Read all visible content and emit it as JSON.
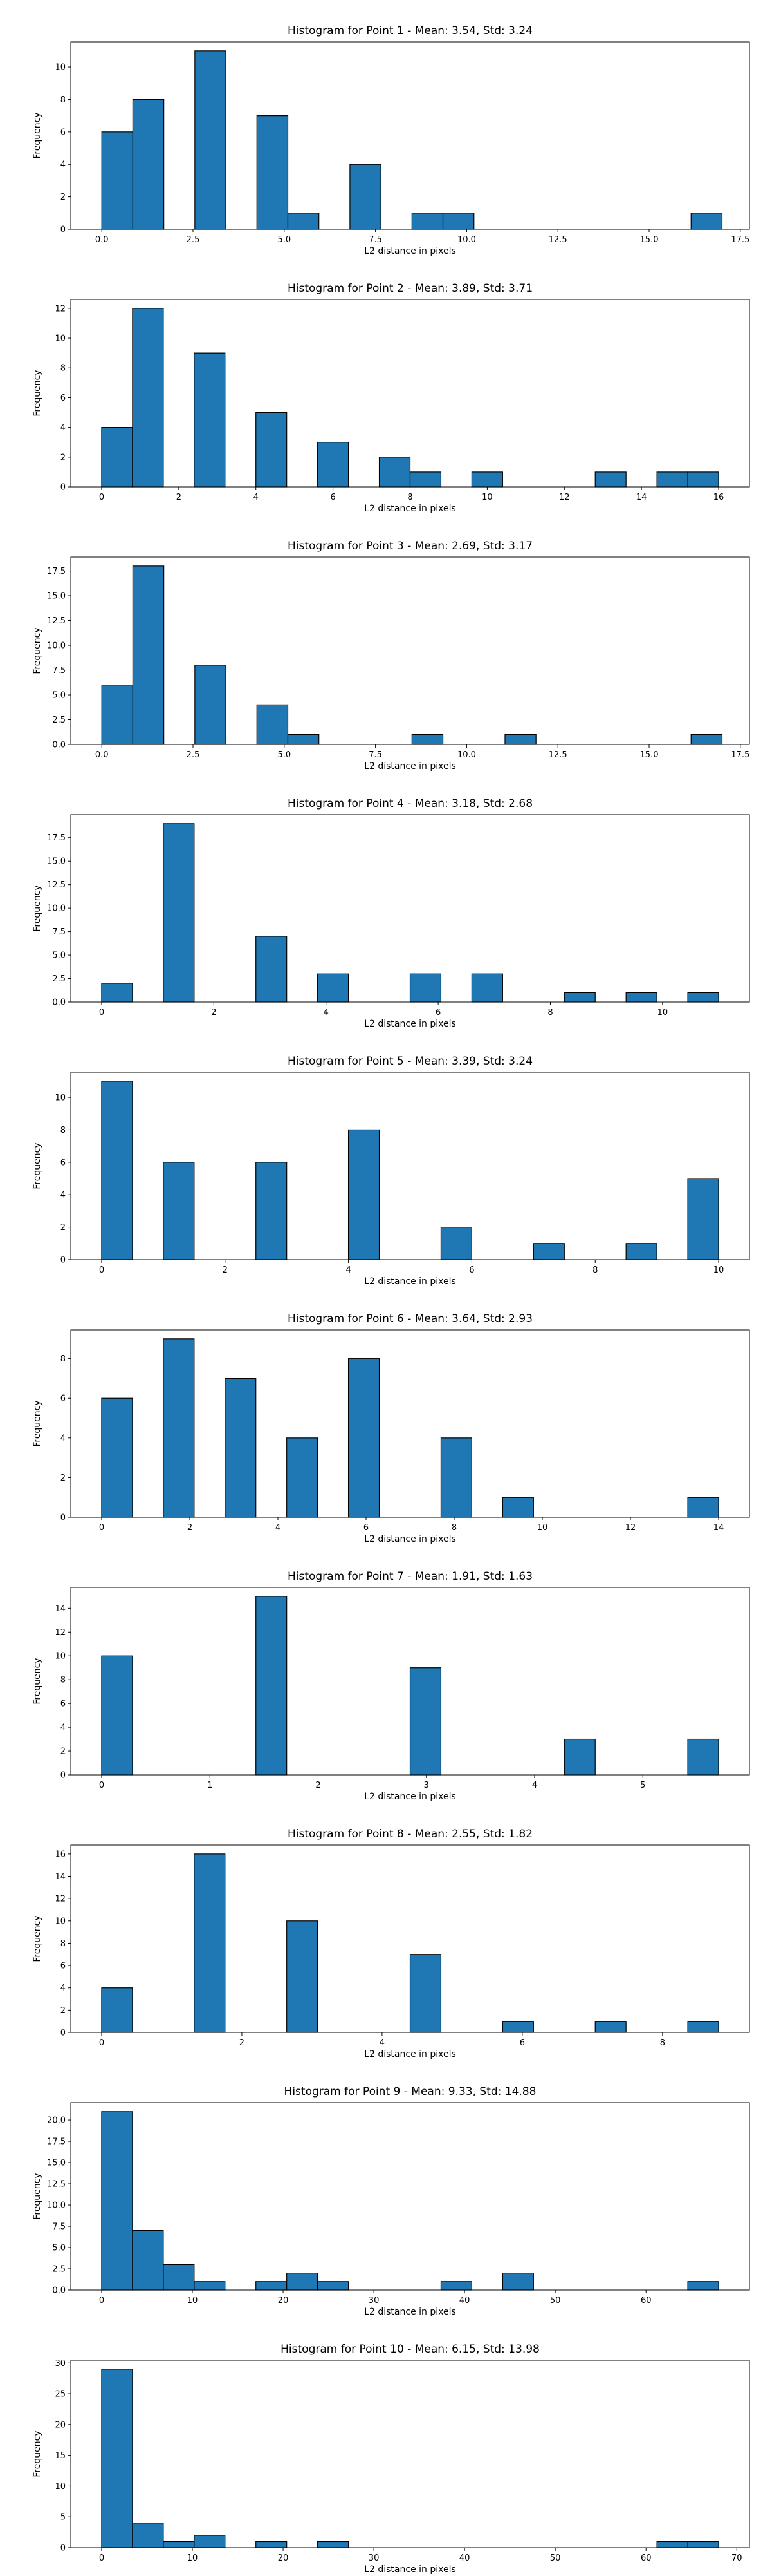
{
  "chart_data": [
    {
      "type": "bar",
      "title": "Histogram for Point 1 - Mean: 3.54, Std: 3.24",
      "xlabel": "L2 distance in pixels",
      "ylabel": "Frequency",
      "xlim": [
        -0.85,
        17.75
      ],
      "ylim": [
        0,
        11.55
      ],
      "xticks": [
        0.0,
        2.5,
        5.0,
        7.5,
        10.0,
        12.5,
        15.0,
        17.5
      ],
      "xtick_labels": [
        "0.0",
        "2.5",
        "5.0",
        "7.5",
        "10.0",
        "12.5",
        "15.0",
        "17.5"
      ],
      "yticks": [
        0,
        2,
        4,
        6,
        8,
        10
      ],
      "ytick_labels": [
        "0",
        "2",
        "4",
        "6",
        "8",
        "10"
      ],
      "bin_edges": [
        0.0,
        0.85,
        1.7,
        2.55,
        3.4,
        4.25,
        5.1,
        5.95,
        6.8,
        7.65,
        8.5,
        9.35,
        10.2,
        11.05,
        11.9,
        12.75,
        13.6,
        14.45,
        15.3,
        16.15,
        17.0
      ],
      "counts": [
        6,
        8,
        0,
        11,
        0,
        7,
        1,
        0,
        4,
        0,
        1,
        1,
        0,
        0,
        0,
        0,
        0,
        0,
        0,
        1
      ]
    },
    {
      "type": "bar",
      "title": "Histogram for Point 2 - Mean: 3.89, Std: 3.71",
      "xlabel": "L2 distance in pixels",
      "ylabel": "Frequency",
      "xlim": [
        -0.8,
        16.8
      ],
      "ylim": [
        0,
        12.6
      ],
      "xticks": [
        0,
        2,
        4,
        6,
        8,
        10,
        12,
        14,
        16
      ],
      "xtick_labels": [
        "0",
        "2",
        "4",
        "6",
        "8",
        "10",
        "12",
        "14",
        "16"
      ],
      "yticks": [
        0,
        2,
        4,
        6,
        8,
        10,
        12
      ],
      "ytick_labels": [
        "0",
        "2",
        "4",
        "6",
        "8",
        "10",
        "12"
      ],
      "bin_edges": [
        0.0,
        0.8,
        1.6,
        2.4,
        3.2,
        4.0,
        4.8,
        5.6,
        6.4,
        7.2,
        8.0,
        8.8,
        9.6,
        10.4,
        11.2,
        12.0,
        12.8,
        13.6,
        14.4,
        15.2,
        16.0
      ],
      "counts": [
        4,
        12,
        0,
        9,
        0,
        5,
        0,
        3,
        0,
        2,
        1,
        0,
        1,
        0,
        0,
        0,
        1,
        0,
        1,
        1
      ]
    },
    {
      "type": "bar",
      "title": "Histogram for Point 3 - Mean: 2.69, Std: 3.17",
      "xlabel": "L2 distance in pixels",
      "ylabel": "Frequency",
      "xlim": [
        -0.85,
        17.75
      ],
      "ylim": [
        0,
        18.9
      ],
      "xticks": [
        0.0,
        2.5,
        5.0,
        7.5,
        10.0,
        12.5,
        15.0,
        17.5
      ],
      "xtick_labels": [
        "0.0",
        "2.5",
        "5.0",
        "7.5",
        "10.0",
        "12.5",
        "15.0",
        "17.5"
      ],
      "yticks": [
        0,
        2.5,
        5,
        7.5,
        10,
        12.5,
        15,
        17.5
      ],
      "ytick_labels": [
        "0.0",
        "2.5",
        "5.0",
        "7.5",
        "10.0",
        "12.5",
        "15.0",
        "17.5"
      ],
      "bin_edges": [
        0.0,
        0.85,
        1.7,
        2.55,
        3.4,
        4.25,
        5.1,
        5.95,
        6.8,
        7.65,
        8.5,
        9.35,
        10.2,
        11.05,
        11.9,
        12.75,
        13.6,
        14.45,
        15.3,
        16.15,
        17.0
      ],
      "counts": [
        6,
        18,
        0,
        8,
        0,
        4,
        1,
        0,
        0,
        0,
        1,
        0,
        0,
        1,
        0,
        0,
        0,
        0,
        0,
        1
      ]
    },
    {
      "type": "bar",
      "title": "Histogram for Point 4 - Mean: 3.18, Std: 2.68",
      "xlabel": "L2 distance in pixels",
      "ylabel": "Frequency",
      "xlim": [
        -0.55,
        11.55
      ],
      "ylim": [
        0,
        19.95
      ],
      "xticks": [
        0,
        2,
        4,
        6,
        8,
        10
      ],
      "xtick_labels": [
        "0",
        "2",
        "4",
        "6",
        "8",
        "10"
      ],
      "yticks": [
        0,
        2.5,
        5,
        7.5,
        10,
        12.5,
        15,
        17.5
      ],
      "ytick_labels": [
        "0.0",
        "2.5",
        "5.0",
        "7.5",
        "10.0",
        "12.5",
        "15.0",
        "17.5"
      ],
      "bin_edges": [
        0.0,
        0.55,
        1.1,
        1.65,
        2.2,
        2.75,
        3.3,
        3.85,
        4.4,
        4.95,
        5.5,
        6.05,
        6.6,
        7.15,
        7.7,
        8.25,
        8.8,
        9.35,
        9.9,
        10.45,
        11.0
      ],
      "counts": [
        2,
        0,
        19,
        0,
        0,
        7,
        0,
        3,
        0,
        0,
        3,
        0,
        3,
        0,
        0,
        1,
        0,
        1,
        0,
        1
      ]
    },
    {
      "type": "bar",
      "title": "Histogram for Point 5 - Mean: 3.39, Std: 3.24",
      "xlabel": "L2 distance in pixels",
      "ylabel": "Frequency",
      "xlim": [
        -0.5,
        10.5
      ],
      "ylim": [
        0,
        11.55
      ],
      "xticks": [
        0,
        2,
        4,
        6,
        8,
        10
      ],
      "xtick_labels": [
        "0",
        "2",
        "4",
        "6",
        "8",
        "10"
      ],
      "yticks": [
        0,
        2,
        4,
        6,
        8,
        10
      ],
      "ytick_labels": [
        "0",
        "2",
        "4",
        "6",
        "8",
        "10"
      ],
      "bin_edges": [
        0.0,
        0.5,
        1.0,
        1.5,
        2.0,
        2.5,
        3.0,
        3.5,
        4.0,
        4.5,
        5.0,
        5.5,
        6.0,
        6.5,
        7.0,
        7.5,
        8.0,
        8.5,
        9.0,
        9.5,
        10.0
      ],
      "counts": [
        11,
        0,
        6,
        0,
        0,
        6,
        0,
        0,
        8,
        0,
        0,
        2,
        0,
        0,
        1,
        0,
        0,
        1,
        0,
        5
      ]
    },
    {
      "type": "bar",
      "title": "Histogram for Point 6 - Mean: 3.64, Std: 2.93",
      "xlabel": "L2 distance in pixels",
      "ylabel": "Frequency",
      "xlim": [
        -0.7,
        14.7
      ],
      "ylim": [
        0,
        9.45
      ],
      "xticks": [
        0,
        2,
        4,
        6,
        8,
        10,
        12,
        14
      ],
      "xtick_labels": [
        "0",
        "2",
        "4",
        "6",
        "8",
        "10",
        "12",
        "14"
      ],
      "yticks": [
        0,
        2,
        4,
        6,
        8
      ],
      "ytick_labels": [
        "0",
        "2",
        "4",
        "6",
        "8"
      ],
      "bin_edges": [
        0.0,
        0.7,
        1.4,
        2.1,
        2.8,
        3.5,
        4.2,
        4.9,
        5.6,
        6.3,
        7.0,
        7.7,
        8.4,
        9.1,
        9.8,
        10.5,
        11.2,
        11.9,
        12.6,
        13.3,
        14.0
      ],
      "counts": [
        6,
        0,
        9,
        0,
        7,
        0,
        4,
        0,
        8,
        0,
        0,
        4,
        0,
        1,
        0,
        0,
        0,
        0,
        0,
        1
      ]
    },
    {
      "type": "bar",
      "title": "Histogram for Point 7 - Mean: 1.91, Std: 1.63",
      "xlabel": "L2 distance in pixels",
      "ylabel": "Frequency",
      "xlim": [
        -0.285,
        5.985
      ],
      "ylim": [
        0,
        15.75
      ],
      "xticks": [
        0,
        1,
        2,
        3,
        4,
        5
      ],
      "xtick_labels": [
        "0",
        "1",
        "2",
        "3",
        "4",
        "5"
      ],
      "yticks": [
        0,
        2,
        4,
        6,
        8,
        10,
        12,
        14
      ],
      "ytick_labels": [
        "0",
        "2",
        "4",
        "6",
        "8",
        "10",
        "12",
        "14"
      ],
      "bin_edges": [
        0.0,
        0.285,
        0.57,
        0.855,
        1.14,
        1.425,
        1.71,
        1.995,
        2.28,
        2.565,
        2.85,
        3.135,
        3.42,
        3.705,
        3.99,
        4.275,
        4.56,
        4.845,
        5.13,
        5.415,
        5.7
      ],
      "counts": [
        10,
        0,
        0,
        0,
        0,
        15,
        0,
        0,
        0,
        0,
        9,
        0,
        0,
        0,
        0,
        3,
        0,
        0,
        0,
        3
      ]
    },
    {
      "type": "bar",
      "title": "Histogram for Point 8 - Mean: 2.55, Std: 1.82",
      "xlabel": "L2 distance in pixels",
      "ylabel": "Frequency",
      "xlim": [
        -0.44,
        9.24
      ],
      "ylim": [
        0,
        16.8
      ],
      "xticks": [
        0,
        2,
        4,
        6,
        8
      ],
      "xtick_labels": [
        "0",
        "2",
        "4",
        "6",
        "8"
      ],
      "yticks": [
        0,
        2,
        4,
        6,
        8,
        10,
        12,
        14,
        16
      ],
      "ytick_labels": [
        "0",
        "2",
        "4",
        "6",
        "8",
        "10",
        "12",
        "14",
        "16"
      ],
      "bin_edges": [
        0.0,
        0.44,
        0.88,
        1.32,
        1.76,
        2.2,
        2.64,
        3.08,
        3.52,
        3.96,
        4.4,
        4.84,
        5.28,
        5.72,
        6.16,
        6.6,
        7.04,
        7.48,
        7.92,
        8.36,
        8.8
      ],
      "counts": [
        4,
        0,
        0,
        16,
        0,
        0,
        10,
        0,
        0,
        0,
        7,
        0,
        0,
        1,
        0,
        0,
        1,
        0,
        0,
        1
      ]
    },
    {
      "type": "bar",
      "title": "Histogram for Point 9 - Mean: 9.33, Std: 14.88",
      "xlabel": "L2 distance in pixels",
      "ylabel": "Frequency",
      "xlim": [
        -3.4,
        71.4
      ],
      "ylim": [
        0,
        22.05
      ],
      "xticks": [
        0,
        10,
        20,
        30,
        40,
        50,
        60
      ],
      "xtick_labels": [
        "0",
        "10",
        "20",
        "30",
        "40",
        "50",
        "60"
      ],
      "yticks": [
        0,
        2.5,
        5,
        7.5,
        10,
        12.5,
        15,
        17.5,
        20
      ],
      "ytick_labels": [
        "0.0",
        "2.5",
        "5.0",
        "7.5",
        "10.0",
        "12.5",
        "15.0",
        "17.5",
        "20.0"
      ],
      "bin_edges": [
        0.0,
        3.4,
        6.8,
        10.2,
        13.6,
        17.0,
        20.4,
        23.8,
        27.2,
        30.6,
        34.0,
        37.4,
        40.8,
        44.2,
        47.6,
        51.0,
        54.4,
        57.8,
        61.2,
        64.6,
        68.0
      ],
      "counts": [
        21,
        7,
        3,
        1,
        0,
        1,
        2,
        1,
        0,
        0,
        0,
        1,
        0,
        2,
        0,
        0,
        0,
        0,
        0,
        1
      ]
    },
    {
      "type": "bar",
      "title": "Histogram for Point 10 - Mean: 6.15, Std: 13.98",
      "xlabel": "L2 distance in pixels",
      "ylabel": "Frequency",
      "xlim": [
        -3.4,
        71.4
      ],
      "ylim": [
        0,
        30.45
      ],
      "xticks": [
        0,
        10,
        20,
        30,
        40,
        50,
        60,
        70
      ],
      "xtick_labels": [
        "0",
        "10",
        "20",
        "30",
        "40",
        "50",
        "60",
        "70"
      ],
      "yticks": [
        0,
        5,
        10,
        15,
        20,
        25,
        30
      ],
      "ytick_labels": [
        "0",
        "5",
        "10",
        "15",
        "20",
        "25",
        "30"
      ],
      "bin_edges": [
        0.0,
        3.4,
        6.8,
        10.2,
        13.6,
        17.0,
        20.4,
        23.8,
        27.2,
        30.6,
        34.0,
        37.4,
        40.8,
        44.2,
        47.6,
        51.0,
        54.4,
        57.8,
        61.2,
        64.6,
        68.0
      ],
      "counts": [
        29,
        4,
        1,
        2,
        0,
        1,
        0,
        1,
        0,
        0,
        0,
        0,
        0,
        0,
        0,
        0,
        0,
        0,
        1,
        1
      ]
    }
  ]
}
